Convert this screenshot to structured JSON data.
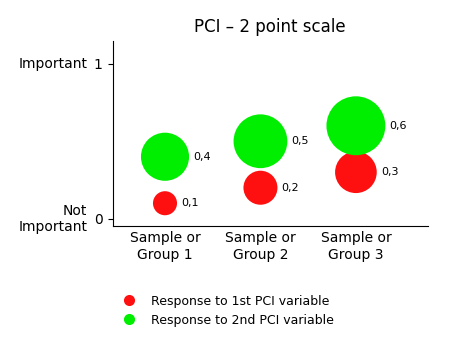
{
  "chart_data": {
    "type": "bubble",
    "title": "PCI – 2 point scale",
    "categories": [
      "Sample or\nGroup 1",
      "Sample or\nGroup 2",
      "Sample or\nGroup 3"
    ],
    "series": [
      {
        "name": "Response to 1st PCI variable",
        "color": "#ff1010",
        "values": [
          0.1,
          0.2,
          0.3
        ],
        "sizes": [
          0.1,
          0.2,
          0.3
        ],
        "value_labels": [
          "0,1",
          "0,2",
          "0,3"
        ]
      },
      {
        "name": "Response to 2nd PCI variable",
        "color": "#00ee00",
        "values": [
          0.4,
          0.5,
          0.6
        ],
        "sizes": [
          0.4,
          0.5,
          0.6
        ],
        "value_labels": [
          "0,4",
          "0,5",
          "0,6"
        ]
      }
    ],
    "ylim": [
      -0.05,
      1.15
    ],
    "yticks": [
      0,
      1
    ],
    "data_labels": true,
    "legend": "lower center",
    "annotations": [
      {
        "text": "Important",
        "y": 1
      },
      {
        "text": "Not\nImportant",
        "y": 0
      }
    ]
  }
}
